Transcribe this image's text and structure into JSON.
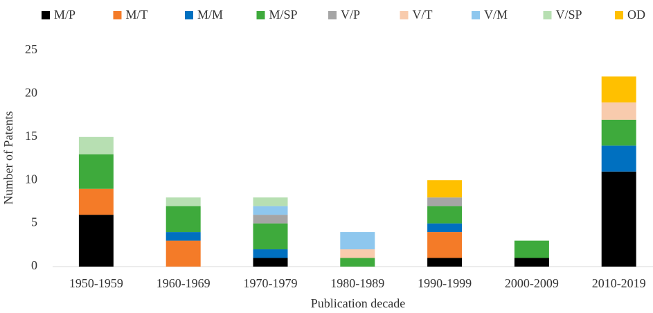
{
  "chart_data": {
    "type": "stacked_bar",
    "x_label": "Publication decade",
    "y_label": "Number of Patents",
    "categories": [
      "1950-1959",
      "1960-1969",
      "1970-1979",
      "1980-1989",
      "1990-1999",
      "2000-2009",
      "2010-2019"
    ],
    "series": [
      {
        "name": "M/P",
        "color": "#000000",
        "values": [
          6,
          0,
          1,
          0,
          1,
          1,
          11
        ]
      },
      {
        "name": "M/T",
        "color": "#f47b28",
        "values": [
          3,
          3,
          0,
          0,
          3,
          0,
          0
        ]
      },
      {
        "name": "M/M",
        "color": "#0070c0",
        "values": [
          0,
          1,
          1,
          0,
          1,
          0,
          3
        ]
      },
      {
        "name": "M/SP",
        "color": "#3eaa3c",
        "values": [
          4,
          3,
          3,
          1,
          2,
          2,
          3
        ]
      },
      {
        "name": "V/P",
        "color": "#a5a5a5",
        "values": [
          0,
          0,
          1,
          0,
          1,
          0,
          0
        ]
      },
      {
        "name": "V/T",
        "color": "#f8cbad",
        "values": [
          0,
          0,
          0,
          1,
          0,
          0,
          2
        ]
      },
      {
        "name": "V/M",
        "color": "#8ec7ee",
        "values": [
          0,
          0,
          1,
          2,
          0,
          0,
          0
        ]
      },
      {
        "name": "V/SP",
        "color": "#b7dfb2",
        "values": [
          2,
          1,
          1,
          0,
          0,
          0,
          0
        ]
      },
      {
        "name": "OD",
        "color": "#ffc000",
        "values": [
          0,
          0,
          0,
          0,
          2,
          0,
          3
        ]
      }
    ],
    "ylim": [
      0,
      25
    ],
    "yticks": [
      0,
      5,
      10,
      15,
      20,
      25
    ],
    "grid": false,
    "legend": "top"
  }
}
